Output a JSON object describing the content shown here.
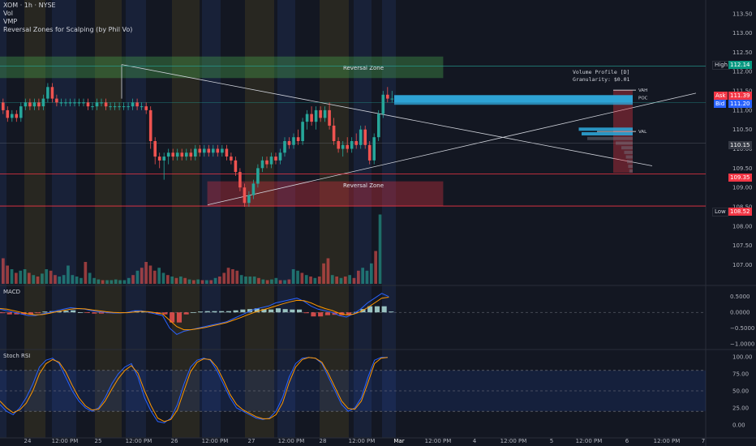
{
  "legend": {
    "symbol": "XOM · 1h · NYSE",
    "vol": "Vol",
    "vmp": "VMP",
    "indicator": "Reversal Zones for Scalping (by Phil Vo)"
  },
  "panes": {
    "macd_label": "MACD",
    "stoch_label": "Stoch RSI"
  },
  "volume_profile": {
    "title": "Volume Profile [D]",
    "granularity": "Granularity: $0.01",
    "vah": "VAH",
    "poc": "POC",
    "val": "VAL"
  },
  "zones": {
    "upper_label": "Reversal Zone",
    "lower_label": "Reversal Zone"
  },
  "tags": {
    "high_label": "High",
    "high_value": "112.14",
    "ask_label": "Ask",
    "ask_value": "111.39",
    "bid_label": "Bid",
    "bid_value": "111.20",
    "level_value": "110.15",
    "zone_value": "109.35",
    "low_label": "Low",
    "low_value": "108.52"
  },
  "colors": {
    "up": "#26a69a",
    "down": "#ef5350",
    "zone_green": "#4caf50",
    "zone_red": "#f23645",
    "profile": "#2ea3d4",
    "macd": "#2962ff",
    "signal": "#ff9800"
  },
  "chart_data": {
    "type": "candlestick",
    "title": "XOM · 1h · NYSE",
    "price_axis": {
      "ticks": [
        113.5,
        113.0,
        112.5,
        112.0,
        111.5,
        111.0,
        110.5,
        110.0,
        109.5,
        109.0,
        108.5,
        108.0,
        107.5,
        107.0
      ]
    },
    "macd_axis": {
      "ticks": [
        "0.5000",
        "0.0000",
        "−0.5000",
        "−1.0000"
      ]
    },
    "stoch_axis": {
      "ticks": [
        "100.00",
        "75.00",
        "50.00",
        "25.00",
        "0.00"
      ]
    },
    "time_axis": [
      "24",
      "12:00 PM",
      "25",
      "12:00 PM",
      "26",
      "12:00 PM",
      "27",
      "12:00 PM",
      "28",
      "12:00 PM",
      "Mar",
      "12:00 PM",
      "4",
      "12:00 PM",
      "5",
      "12:00 PM",
      "6",
      "12:00 PM",
      "7"
    ],
    "reversal_zones": [
      {
        "label": "Reversal Zone",
        "top": 112.38,
        "bottom": 111.84
      },
      {
        "label": "Reversal Zone",
        "top": 109.15,
        "bottom": 108.52
      }
    ],
    "levels": {
      "high": 112.14,
      "ask": 111.39,
      "bid": 111.2,
      "level": 110.15,
      "zone": 109.35,
      "low": 108.52
    },
    "candles": [
      [
        111.2,
        111.3,
        110.9,
        111.0
      ],
      [
        111.0,
        111.1,
        110.7,
        110.8
      ],
      [
        110.8,
        111.0,
        110.7,
        110.9
      ],
      [
        110.9,
        111.0,
        110.7,
        110.8
      ],
      [
        110.8,
        111.2,
        110.7,
        111.1
      ],
      [
        111.1,
        111.3,
        111.0,
        111.2
      ],
      [
        111.2,
        111.3,
        111.0,
        111.1
      ],
      [
        111.1,
        111.3,
        111.0,
        111.2
      ],
      [
        111.2,
        111.3,
        111.0,
        111.1
      ],
      [
        111.1,
        111.4,
        111.0,
        111.3
      ],
      [
        111.3,
        111.7,
        111.2,
        111.6
      ],
      [
        111.6,
        111.7,
        111.2,
        111.3
      ],
      [
        111.3,
        111.4,
        111.1,
        111.2
      ],
      [
        111.2,
        111.3,
        111.1,
        111.2
      ],
      [
        111.2,
        111.3,
        111.1,
        111.2
      ],
      [
        111.2,
        111.3,
        111.1,
        111.2
      ],
      [
        111.2,
        111.3,
        111.1,
        111.2
      ],
      [
        111.2,
        111.3,
        111.1,
        111.2
      ],
      [
        111.2,
        111.3,
        111.1,
        111.2
      ],
      [
        111.2,
        111.3,
        111.0,
        111.1
      ],
      [
        111.1,
        111.2,
        111.0,
        111.1
      ],
      [
        111.1,
        111.3,
        111.0,
        111.2
      ],
      [
        111.2,
        111.3,
        111.1,
        111.2
      ],
      [
        111.2,
        111.3,
        111.0,
        111.1
      ],
      [
        111.1,
        111.2,
        111.0,
        111.1
      ],
      [
        111.1,
        111.2,
        111.0,
        111.1
      ],
      [
        111.1,
        111.2,
        111.0,
        111.1
      ],
      [
        111.1,
        111.2,
        111.0,
        111.1
      ],
      [
        111.1,
        111.2,
        111.0,
        111.1
      ],
      [
        111.1,
        111.3,
        111.0,
        111.2
      ],
      [
        111.2,
        111.3,
        111.0,
        111.1
      ],
      [
        111.1,
        111.2,
        111.0,
        111.1
      ],
      [
        111.1,
        111.2,
        110.9,
        111.0
      ],
      [
        111.0,
        111.1,
        110.0,
        110.2
      ],
      [
        110.2,
        110.3,
        109.6,
        109.8
      ],
      [
        109.8,
        109.9,
        109.5,
        109.7
      ],
      [
        109.7,
        109.9,
        109.2,
        109.8
      ],
      [
        109.8,
        110.0,
        109.6,
        109.9
      ],
      [
        109.9,
        110.0,
        109.7,
        109.8
      ],
      [
        109.8,
        110.0,
        109.7,
        109.9
      ],
      [
        109.9,
        110.0,
        109.7,
        109.8
      ],
      [
        109.8,
        110.0,
        109.7,
        109.9
      ],
      [
        109.9,
        110.0,
        109.7,
        109.8
      ],
      [
        109.8,
        110.1,
        109.7,
        110.0
      ],
      [
        110.0,
        110.1,
        109.8,
        109.9
      ],
      [
        109.9,
        110.1,
        109.8,
        110.0
      ],
      [
        110.0,
        110.1,
        109.8,
        109.9
      ],
      [
        109.9,
        110.1,
        109.8,
        110.0
      ],
      [
        110.0,
        110.1,
        109.8,
        109.9
      ],
      [
        109.9,
        110.1,
        109.8,
        110.0
      ],
      [
        110.0,
        110.1,
        109.7,
        109.8
      ],
      [
        109.8,
        109.9,
        109.6,
        109.7
      ],
      [
        109.7,
        109.8,
        109.3,
        109.4
      ],
      [
        109.4,
        109.5,
        108.9,
        109.0
      ],
      [
        109.0,
        109.1,
        108.5,
        108.6
      ],
      [
        108.6,
        108.9,
        108.5,
        108.8
      ],
      [
        108.8,
        109.2,
        108.7,
        109.1
      ],
      [
        109.1,
        109.6,
        109.0,
        109.5
      ],
      [
        109.5,
        109.8,
        109.4,
        109.7
      ],
      [
        109.7,
        109.8,
        109.5,
        109.6
      ],
      [
        109.6,
        109.9,
        109.5,
        109.8
      ],
      [
        109.8,
        109.9,
        109.6,
        109.7
      ],
      [
        109.7,
        110.0,
        109.6,
        109.9
      ],
      [
        109.9,
        110.3,
        109.8,
        110.2
      ],
      [
        110.2,
        110.3,
        110.0,
        110.1
      ],
      [
        110.1,
        110.4,
        110.0,
        110.3
      ],
      [
        110.3,
        110.5,
        110.1,
        110.2
      ],
      [
        110.2,
        110.8,
        110.1,
        110.7
      ],
      [
        110.7,
        111.0,
        110.5,
        110.9
      ],
      [
        110.9,
        111.1,
        110.6,
        110.7
      ],
      [
        110.7,
        111.1,
        110.5,
        111.0
      ],
      [
        111.0,
        111.1,
        110.7,
        110.8
      ],
      [
        110.8,
        111.1,
        110.7,
        111.0
      ],
      [
        111.0,
        111.2,
        110.5,
        110.6
      ],
      [
        110.6,
        110.8,
        110.1,
        110.2
      ],
      [
        110.2,
        110.3,
        109.9,
        110.0
      ],
      [
        110.0,
        110.2,
        109.8,
        110.1
      ],
      [
        110.1,
        110.3,
        109.9,
        110.0
      ],
      [
        110.0,
        110.3,
        109.9,
        110.2
      ],
      [
        110.2,
        110.4,
        110.0,
        110.1
      ],
      [
        110.1,
        110.6,
        110.0,
        110.5
      ],
      [
        110.5,
        110.6,
        110.0,
        110.1
      ],
      [
        110.1,
        110.2,
        109.6,
        109.7
      ],
      [
        109.7,
        110.4,
        109.6,
        110.3
      ],
      [
        110.3,
        111.0,
        110.2,
        110.9
      ],
      [
        110.9,
        111.5,
        110.8,
        111.4
      ],
      [
        111.4,
        111.6,
        111.2,
        111.3
      ],
      [
        111.3,
        111.5,
        111.2,
        111.3
      ]
    ],
    "volume": [
      0.35,
      0.25,
      0.2,
      0.15,
      0.18,
      0.2,
      0.15,
      0.12,
      0.1,
      0.14,
      0.2,
      0.18,
      0.12,
      0.1,
      0.12,
      0.25,
      0.12,
      0.1,
      0.08,
      0.3,
      0.15,
      0.08,
      0.06,
      0.05,
      0.05,
      0.05,
      0.06,
      0.05,
      0.05,
      0.08,
      0.12,
      0.18,
      0.22,
      0.3,
      0.25,
      0.18,
      0.22,
      0.15,
      0.12,
      0.1,
      0.08,
      0.1,
      0.08,
      0.06,
      0.05,
      0.06,
      0.05,
      0.05,
      0.05,
      0.08,
      0.1,
      0.15,
      0.22,
      0.2,
      0.18,
      0.12,
      0.1,
      0.1,
      0.1,
      0.08,
      0.06,
      0.05,
      0.06,
      0.08,
      0.05,
      0.05,
      0.06,
      0.2,
      0.18,
      0.15,
      0.12,
      0.1,
      0.08,
      0.1,
      0.28,
      0.35,
      0.12,
      0.1,
      0.08,
      0.1,
      0.12,
      0.08,
      0.18,
      0.22,
      0.18,
      0.28,
      0.45,
      0.95
    ],
    "volume_profile_bars": [
      0.95,
      0.9,
      0.8,
      0.3,
      0.2,
      0.15,
      0.12,
      0.1,
      0.08,
      0.06
    ],
    "macd": [
      0.1,
      0.05,
      0.0,
      -0.05,
      -0.1,
      -0.1,
      -0.05,
      0.0,
      0.05,
      0.1,
      0.15,
      0.12,
      0.1,
      0.05,
      0.02,
      0.0,
      -0.02,
      -0.02,
      0.0,
      0.05,
      0.05,
      0.0,
      -0.05,
      -0.1,
      -0.5,
      -0.7,
      -0.6,
      -0.55,
      -0.5,
      -0.45,
      -0.4,
      -0.35,
      -0.3,
      -0.2,
      -0.1,
      0.0,
      0.1,
      0.15,
      0.2,
      0.3,
      0.35,
      0.4,
      0.45,
      0.35,
      0.2,
      0.1,
      0.05,
      0.0,
      -0.1,
      -0.15,
      -0.05,
      0.1,
      0.3,
      0.45,
      0.6,
      0.5
    ],
    "signal": [
      0.12,
      0.1,
      0.05,
      0.0,
      -0.05,
      -0.08,
      -0.07,
      -0.03,
      0.02,
      0.06,
      0.1,
      0.12,
      0.11,
      0.08,
      0.05,
      0.02,
      0.0,
      -0.01,
      -0.01,
      0.01,
      0.03,
      0.02,
      -0.01,
      -0.05,
      -0.25,
      -0.45,
      -0.55,
      -0.55,
      -0.52,
      -0.48,
      -0.43,
      -0.38,
      -0.33,
      -0.25,
      -0.17,
      -0.08,
      0.0,
      0.07,
      0.13,
      0.2,
      0.27,
      0.33,
      0.38,
      0.37,
      0.3,
      0.2,
      0.12,
      0.06,
      -0.03,
      -0.08,
      -0.06,
      0.02,
      0.15,
      0.3,
      0.45,
      0.48
    ],
    "stoch_k": [
      30,
      20,
      15,
      25,
      40,
      60,
      85,
      95,
      98,
      90,
      70,
      50,
      35,
      25,
      20,
      25,
      40,
      60,
      75,
      85,
      90,
      70,
      40,
      20,
      5,
      3,
      10,
      30,
      60,
      85,
      95,
      98,
      95,
      80,
      60,
      40,
      25,
      20,
      15,
      10,
      8,
      10,
      20,
      40,
      70,
      90,
      98,
      99,
      98,
      90,
      70,
      50,
      30,
      20,
      25,
      40,
      70,
      95,
      99,
      99
    ],
    "stoch_d": [
      35,
      25,
      18,
      22,
      32,
      50,
      75,
      90,
      96,
      92,
      78,
      58,
      40,
      28,
      22,
      23,
      35,
      52,
      68,
      80,
      87,
      76,
      50,
      28,
      10,
      5,
      8,
      22,
      50,
      78,
      92,
      97,
      96,
      85,
      66,
      45,
      30,
      22,
      17,
      12,
      9,
      9,
      15,
      32,
      62,
      85,
      96,
      99,
      98,
      92,
      75,
      55,
      35,
      24,
      23,
      35,
      62,
      90,
      98,
      99
    ]
  }
}
